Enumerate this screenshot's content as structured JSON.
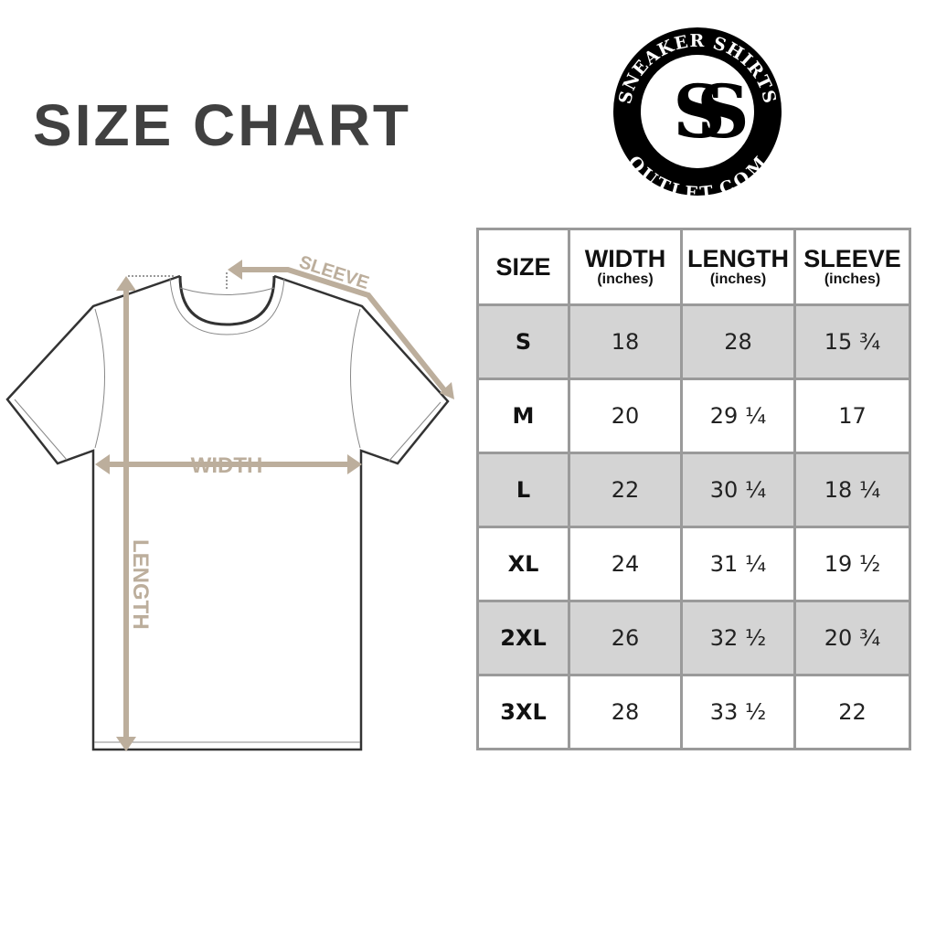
{
  "title": "SIZE CHART",
  "logo": {
    "top_text": "SNEAKER SHIRTS",
    "bottom_text": "OUTLET.COM",
    "monogram": "SS"
  },
  "diagram": {
    "sleeve_label": "SLEEVE",
    "width_label": "WIDTH",
    "length_label": "LENGTH",
    "accent_color": "#bcae9c"
  },
  "table": {
    "headers": [
      {
        "label": "SIZE",
        "unit": ""
      },
      {
        "label": "WIDTH",
        "unit": "(inches)"
      },
      {
        "label": "LENGTH",
        "unit": "(inches)"
      },
      {
        "label": "SLEEVE",
        "unit": "(inches)"
      }
    ],
    "rows": [
      [
        "S",
        "18",
        "28",
        "15 ¾"
      ],
      [
        "M",
        "20",
        "29 ¼",
        "17"
      ],
      [
        "L",
        "22",
        "30 ¼",
        "18 ¼"
      ],
      [
        "XL",
        "24",
        "31 ¼",
        "19 ½"
      ],
      [
        "2XL",
        "26",
        "32 ½",
        "20 ¾"
      ],
      [
        "3XL",
        "28",
        "33 ½",
        "22"
      ]
    ]
  }
}
